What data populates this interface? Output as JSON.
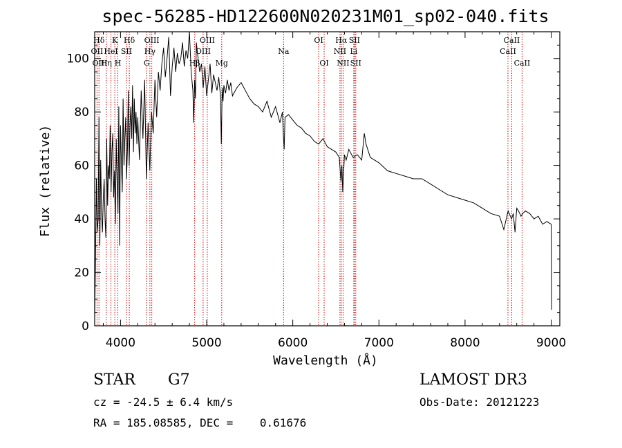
{
  "chart_data": {
    "type": "line",
    "title": "spec-56285-HD122600N020231M01_sp02-040.fits",
    "xlabel": "Wavelength (Å)",
    "ylabel": "Flux (relative)",
    "xlim": [
      3700,
      9100
    ],
    "ylim": [
      0,
      110
    ],
    "xticks": [
      4000,
      5000,
      6000,
      7000,
      8000,
      9000
    ],
    "yticks": [
      0,
      20,
      40,
      60,
      80,
      100
    ],
    "grid": false,
    "series": [
      {
        "name": "flux",
        "color": "#000000",
        "x": [
          3700,
          3710,
          3720,
          3730,
          3740,
          3750,
          3760,
          3770,
          3780,
          3790,
          3800,
          3810,
          3820,
          3830,
          3840,
          3850,
          3860,
          3870,
          3880,
          3890,
          3900,
          3910,
          3920,
          3930,
          3940,
          3950,
          3960,
          3970,
          3980,
          3990,
          4000,
          4010,
          4020,
          4030,
          4040,
          4050,
          4060,
          4070,
          4080,
          4090,
          4100,
          4110,
          4120,
          4130,
          4140,
          4150,
          4160,
          4170,
          4180,
          4190,
          4200,
          4220,
          4240,
          4260,
          4280,
          4300,
          4320,
          4340,
          4360,
          4380,
          4400,
          4420,
          4440,
          4460,
          4480,
          4500,
          4520,
          4540,
          4560,
          4580,
          4600,
          4620,
          4640,
          4660,
          4680,
          4700,
          4720,
          4740,
          4760,
          4780,
          4800,
          4820,
          4840,
          4850,
          4860,
          4870,
          4880,
          4900,
          4920,
          4940,
          4960,
          4980,
          5000,
          5020,
          5040,
          5060,
          5080,
          5100,
          5120,
          5140,
          5160,
          5170,
          5180,
          5190,
          5200,
          5220,
          5240,
          5260,
          5280,
          5300,
          5350,
          5400,
          5450,
          5500,
          5550,
          5600,
          5650,
          5700,
          5750,
          5800,
          5850,
          5880,
          5890,
          5900,
          5910,
          5950,
          6000,
          6050,
          6100,
          6150,
          6200,
          6250,
          6300,
          6350,
          6400,
          6450,
          6500,
          6540,
          6560,
          6570,
          6580,
          6600,
          6620,
          6650,
          6700,
          6750,
          6800,
          6830,
          6850,
          6900,
          6950,
          7000,
          7100,
          7200,
          7300,
          7400,
          7500,
          7600,
          7700,
          7800,
          7900,
          8000,
          8100,
          8200,
          8300,
          8400,
          8450,
          8500,
          8540,
          8560,
          8580,
          8600,
          8620,
          8650,
          8670,
          8700,
          8750,
          8800,
          8850,
          8900,
          8950,
          9000,
          9005
        ],
        "values": [
          3,
          25,
          55,
          35,
          40,
          78,
          30,
          62,
          42,
          35,
          48,
          55,
          40,
          33,
          70,
          45,
          60,
          55,
          75,
          50,
          65,
          72,
          48,
          58,
          38,
          70,
          55,
          42,
          82,
          30,
          75,
          62,
          50,
          85,
          60,
          70,
          78,
          55,
          66,
          88,
          60,
          75,
          82,
          70,
          90,
          65,
          85,
          72,
          80,
          68,
          78,
          62,
          88,
          70,
          92,
          55,
          76,
          58,
          80,
          72,
          92,
          78,
          95,
          88,
          98,
          104,
          93,
          100,
          108,
          86,
          97,
          104,
          95,
          102,
          98,
          100,
          106,
          97,
          103,
          100,
          112,
          95,
          88,
          76,
          92,
          85,
          106,
          100,
          95,
          98,
          89,
          97,
          86,
          92,
          98,
          87,
          94,
          91,
          88,
          93,
          86,
          68,
          89,
          84,
          90,
          87,
          92,
          88,
          91,
          86,
          89,
          91,
          88,
          85,
          83,
          82,
          80,
          84,
          78,
          82,
          76,
          80,
          72,
          66,
          78,
          79,
          77,
          75,
          74,
          72,
          71,
          69,
          68,
          70,
          67,
          66,
          65,
          63,
          54,
          60,
          50,
          64,
          62,
          66,
          63,
          64,
          62,
          72,
          68,
          63,
          62,
          61,
          58,
          57,
          56,
          55,
          55,
          53,
          51,
          49,
          48,
          47,
          46,
          44,
          42,
          41,
          36,
          43,
          40,
          42,
          35,
          44,
          43,
          41,
          42,
          43,
          42,
          40,
          41,
          38,
          39,
          38,
          6
        ]
      }
    ],
    "line_labels": [
      {
        "name": "Hδ",
        "wavelength": 3750,
        "row": 1
      },
      {
        "name": "OII",
        "wavelength": 3727,
        "row": 2
      },
      {
        "name": "OIII",
        "wavelength": 3760,
        "row": 3
      },
      {
        "name": "K",
        "wavelength": 3934,
        "row": 1
      },
      {
        "name": "HeI",
        "wavelength": 3889,
        "row": 2
      },
      {
        "name": "Hη",
        "wavelength": 3835,
        "row": 3
      },
      {
        "name": "H",
        "wavelength": 3969,
        "row": 3
      },
      {
        "name": "Hδ",
        "wavelength": 4102,
        "row": 1
      },
      {
        "name": "SII",
        "wavelength": 4069,
        "row": 2
      },
      {
        "name": "OIII",
        "wavelength": 4363,
        "row": 1
      },
      {
        "name": "Hγ",
        "wavelength": 4341,
        "row": 2
      },
      {
        "name": "G",
        "wavelength": 4304,
        "row": 3
      },
      {
        "name": "Hβ",
        "wavelength": 4861,
        "row": 3
      },
      {
        "name": "OIII",
        "wavelength": 5007,
        "row": 1
      },
      {
        "name": "OIII",
        "wavelength": 4959,
        "row": 2
      },
      {
        "name": "Mg",
        "wavelength": 5175,
        "row": 3
      },
      {
        "name": "Na",
        "wavelength": 5893,
        "row": 2
      },
      {
        "name": "OI",
        "wavelength": 6300,
        "row": 1
      },
      {
        "name": "OI",
        "wavelength": 6364,
        "row": 3
      },
      {
        "name": "Hα",
        "wavelength": 6563,
        "row": 1
      },
      {
        "name": "SII",
        "wavelength": 6716,
        "row": 1
      },
      {
        "name": "NII",
        "wavelength": 6548,
        "row": 2
      },
      {
        "name": "Li",
        "wavelength": 6708,
        "row": 2
      },
      {
        "name": "NII",
        "wavelength": 6584,
        "row": 3
      },
      {
        "name": "SII",
        "wavelength": 6731,
        "row": 3
      },
      {
        "name": "CaII",
        "wavelength": 8542,
        "row": 1
      },
      {
        "name": "CaII",
        "wavelength": 8498,
        "row": 2
      },
      {
        "name": "CaII",
        "wavelength": 8662,
        "row": 3
      }
    ],
    "marker_lines": [
      3727,
      3750,
      3835,
      3889,
      3934,
      3969,
      4069,
      4102,
      4304,
      4341,
      4363,
      4861,
      4959,
      5007,
      5175,
      5893,
      6300,
      6364,
      6548,
      6563,
      6584,
      6708,
      6716,
      6731,
      8498,
      8542,
      8662
    ],
    "marker_color": "#cc0000"
  },
  "info": {
    "class": "STAR",
    "subclass": "G7",
    "survey": "LAMOST DR3",
    "cz": "cz = -24.5 ± 6.4 km/s",
    "obs_date": "Obs-Date: 20121223",
    "radec": "RA = 185.08585, DEC =    0.61676"
  }
}
